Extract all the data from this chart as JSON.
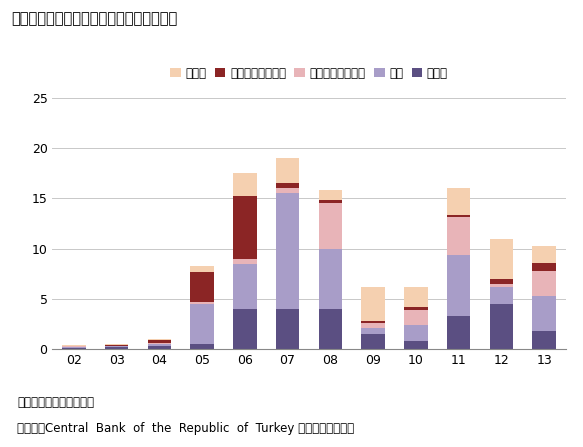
{
  "title": "図表１．　外国直接投資の推移（産業別）",
  "note": "（注）単位は１０億ドル",
  "source": "（出所）Central  Bank  of  the  Republic  of  Turkey より大和総研作成",
  "categories": [
    "02",
    "03",
    "04",
    "05",
    "06",
    "07",
    "08",
    "09",
    "10",
    "11",
    "12",
    "13"
  ],
  "series": [
    {
      "name": "製造業",
      "color": "#5b4f82",
      "values": [
        0.1,
        0.2,
        0.3,
        0.5,
        4.0,
        4.0,
        4.0,
        1.5,
        0.8,
        3.3,
        4.5,
        1.8
      ]
    },
    {
      "name": "金融",
      "color": "#a89dc8",
      "values": [
        0.1,
        0.05,
        0.2,
        4.0,
        4.5,
        11.5,
        6.0,
        0.6,
        1.6,
        6.1,
        1.7,
        3.5
      ]
    },
    {
      "name": "電力・ガス・水道",
      "color": "#e8b4b8",
      "values": [
        0.05,
        0.05,
        0.1,
        0.2,
        0.5,
        0.5,
        4.5,
        0.5,
        1.5,
        3.7,
        0.3,
        2.5
      ]
    },
    {
      "name": "運輸・倉庫・通信",
      "color": "#8b2525",
      "values": [
        0.05,
        0.05,
        0.3,
        3.0,
        6.2,
        0.5,
        0.3,
        0.2,
        0.3,
        0.2,
        0.5,
        0.8
      ]
    },
    {
      "name": "その他",
      "color": "#f5d0b0",
      "values": [
        0.1,
        0.1,
        0.1,
        0.6,
        2.3,
        2.5,
        1.0,
        3.4,
        2.0,
        2.7,
        4.0,
        1.7
      ]
    }
  ],
  "ylim": [
    0,
    25
  ],
  "yticks": [
    0,
    5,
    10,
    15,
    20,
    25
  ],
  "background_color": "#ffffff",
  "grid_color": "#c8c8c8",
  "title_fontsize": 10.5,
  "legend_fontsize": 8.5,
  "tick_fontsize": 9,
  "bar_width": 0.55
}
